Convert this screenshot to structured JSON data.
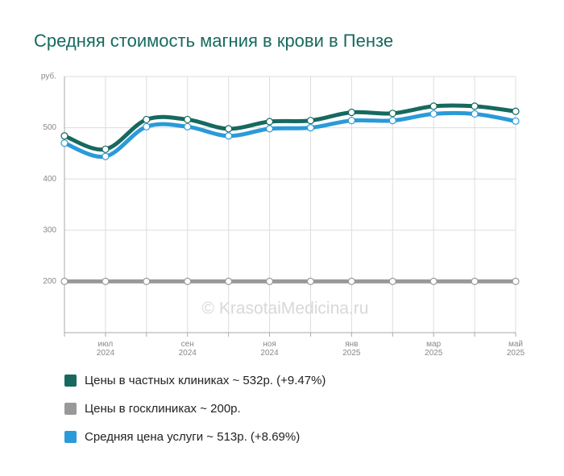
{
  "chart_data": {
    "type": "line",
    "title": "Средняя стоимость магния в крови в Пензе",
    "watermark": "© KrasotaiMedicina.ru",
    "categories": [
      null,
      "июл 2024",
      null,
      "сен 2024",
      null,
      "ноя 2024",
      null,
      "янв 2025",
      null,
      "мар 2025",
      null,
      "май 2025"
    ],
    "ylim": [
      100,
      600
    ],
    "yticks": [
      200,
      300,
      400,
      500,
      {
        "value": 600,
        "label": "руб."
      }
    ],
    "grid": true,
    "legend": "bottom",
    "series": [
      {
        "name": "Цены в частных клиниках ~ 532р. (+9.47%)",
        "color": "#17695f",
        "values": [
          484,
          458,
          516,
          516,
          498,
          512,
          514,
          530,
          528,
          542,
          542,
          532
        ]
      },
      {
        "name": "Цены в госклиниках ~ 200р.",
        "color": "#999999",
        "values": [
          200,
          200,
          200,
          200,
          200,
          200,
          200,
          200,
          200,
          200,
          200,
          200
        ]
      },
      {
        "name": "Средняя цена услуги ~ 513р. (+8.69%)",
        "color": "#2b9ad8",
        "values": [
          470,
          444,
          502,
          502,
          484,
          498,
          500,
          514,
          514,
          527,
          527,
          513
        ]
      }
    ]
  }
}
